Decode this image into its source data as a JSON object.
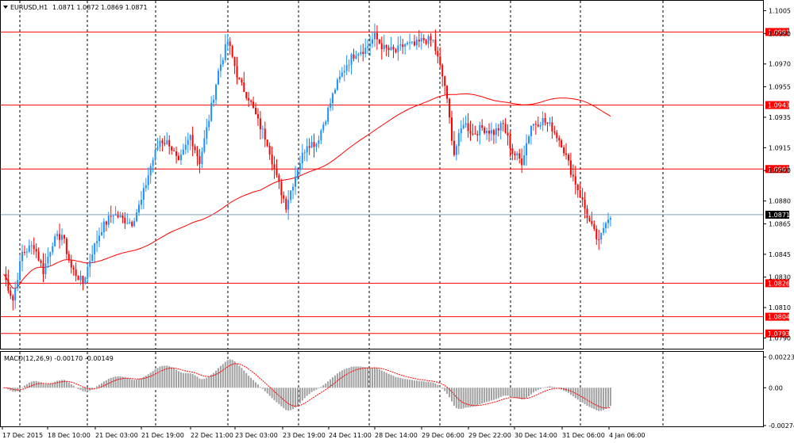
{
  "header": {
    "symbol": "EURUSD,H1",
    "ohlc": "1.0871 1.0872 1.0869 1.0871",
    "macd": "MACD(12,26,9) -0.00170 -0.00149"
  },
  "colors": {
    "bull": "#1e90ff",
    "bear": "#ff0000",
    "ma": "#ff0000",
    "level_line": "#ff0000",
    "level_tag_bg": "#ff0000",
    "price_line": "#7f9fbf",
    "price_tag_bg": "#000000",
    "grid": "#000000",
    "histogram": "#a0a0a0",
    "signal": "#ff0000"
  },
  "chart_data": {
    "type": "candlestick",
    "price_axis": {
      "ylim": [
        1.0783,
        1.1012
      ],
      "ticks": [
        "1.1005",
        "1.0990",
        "1.0970",
        "1.0955",
        "1.0935",
        "1.0915",
        "1.0900",
        "1.0880",
        "1.0865",
        "1.0845",
        "1.0830",
        "1.0810",
        "1.0790"
      ]
    },
    "levels": [
      {
        "price": 1.0991,
        "label": "1.0991"
      },
      {
        "price": 1.0943,
        "label": "1.0943"
      },
      {
        "price": 1.0901,
        "label": "1.0901"
      },
      {
        "price": 1.0826,
        "label": "1.0826"
      },
      {
        "price": 1.0804,
        "label": "1.0804"
      },
      {
        "price": 1.0793,
        "label": "1.0793"
      }
    ],
    "current_price": {
      "price": 1.0871,
      "label": "1.0871"
    },
    "x_labels": [
      "17 Dec 2015",
      "18 Dec 10:00",
      "21 Dec 03:00",
      "21 Dec 19:00",
      "22 Dec 11:00",
      "23 Dec 03:00",
      "23 Dec 19:00",
      "24 Dec 11:00",
      "28 Dec 14:00",
      "29 Dec 06:00",
      "29 Dec 22:00",
      "30 Dec 14:00",
      "31 Dec 06:00",
      "4 Jan 06:00"
    ],
    "close_series": [
      [
        0,
        1.0832
      ],
      [
        4,
        1.0815
      ],
      [
        8,
        1.0846
      ],
      [
        13,
        1.0851
      ],
      [
        17,
        1.0834
      ],
      [
        21,
        1.0853
      ],
      [
        25,
        1.0858
      ],
      [
        29,
        1.0836
      ],
      [
        34,
        1.0826
      ],
      [
        38,
        1.0847
      ],
      [
        42,
        1.0862
      ],
      [
        47,
        1.0872
      ],
      [
        51,
        1.0868
      ],
      [
        55,
        1.0866
      ],
      [
        59,
        1.088
      ],
      [
        63,
        1.0903
      ],
      [
        67,
        1.092
      ],
      [
        71,
        1.0918
      ],
      [
        75,
        1.0904
      ],
      [
        80,
        1.0923
      ],
      [
        84,
        1.0906
      ],
      [
        88,
        1.0934
      ],
      [
        92,
        1.0965
      ],
      [
        96,
        1.0985
      ],
      [
        101,
        1.0958
      ],
      [
        105,
        1.0948
      ],
      [
        109,
        1.0932
      ],
      [
        113,
        1.0919
      ],
      [
        117,
        1.0895
      ],
      [
        121,
        1.0877
      ],
      [
        126,
        1.0902
      ],
      [
        130,
        1.0918
      ],
      [
        134,
        1.0918
      ],
      [
        138,
        1.0935
      ],
      [
        142,
        1.0954
      ],
      [
        147,
        1.097
      ],
      [
        151,
        1.0978
      ],
      [
        155,
        1.098
      ],
      [
        159,
        1.0988
      ],
      [
        163,
        1.098
      ],
      [
        168,
        1.0978
      ],
      [
        172,
        1.0983
      ],
      [
        176,
        1.0982
      ],
      [
        180,
        1.0986
      ],
      [
        184,
        1.0985
      ],
      [
        189,
        1.0956
      ],
      [
        193,
        1.0911
      ],
      [
        197,
        1.0932
      ],
      [
        201,
        1.0924
      ],
      [
        205,
        1.0928
      ],
      [
        210,
        1.0925
      ],
      [
        214,
        1.093
      ],
      [
        218,
        1.0912
      ],
      [
        222,
        1.0906
      ],
      [
        226,
        1.093
      ],
      [
        231,
        1.0933
      ],
      [
        235,
        1.0928
      ],
      [
        239,
        1.0918
      ],
      [
        243,
        1.09
      ],
      [
        247,
        1.0884
      ],
      [
        251,
        1.0866
      ],
      [
        255,
        1.0852
      ],
      [
        258,
        1.0868
      ],
      [
        260,
        1.0871
      ]
    ],
    "macd": {
      "ylim": [
        -0.0028,
        0.0026
      ],
      "ticks": [
        "0.00223",
        "0.00",
        "-0.00274"
      ]
    }
  }
}
